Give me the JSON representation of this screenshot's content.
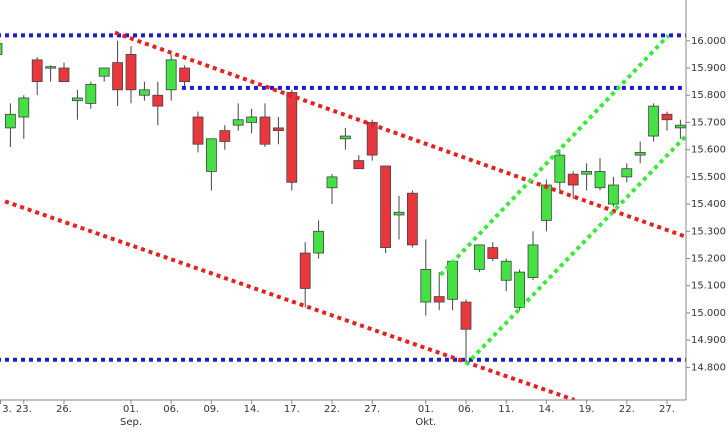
{
  "chart_data": {
    "type": "candlestick",
    "categories": [
      "3.",
      null,
      "23.",
      null,
      null,
      "26.",
      null,
      null,
      null,
      null,
      "01.",
      null,
      null,
      "06.",
      null,
      null,
      "09.",
      null,
      null,
      "14.",
      null,
      null,
      "17.",
      null,
      null,
      "22.",
      null,
      null,
      "27.",
      null,
      null,
      null,
      "01.",
      null,
      null,
      "06.",
      null,
      null,
      "11.",
      null,
      null,
      "14.",
      null,
      null,
      "19.",
      null,
      null,
      "22.",
      null,
      null,
      "27.",
      null,
      null
    ],
    "months": [
      null,
      null,
      null,
      null,
      null,
      null,
      null,
      null,
      null,
      null,
      "Sep.",
      null,
      null,
      null,
      null,
      null,
      null,
      null,
      null,
      null,
      null,
      null,
      null,
      null,
      null,
      null,
      null,
      null,
      null,
      null,
      null,
      null,
      "Okt.",
      null,
      null,
      null,
      null,
      null,
      null,
      null,
      null,
      null,
      null,
      null,
      null,
      null,
      null,
      null,
      null,
      null,
      null,
      null
    ],
    "open": [
      15.95,
      15.68,
      15.72,
      15.93,
      15.9,
      15.9,
      15.78,
      15.77,
      15.87,
      15.92,
      15.95,
      15.8,
      15.8,
      15.82,
      15.9,
      15.72,
      15.52,
      15.67,
      15.69,
      15.7,
      15.72,
      15.68,
      15.81,
      15.22,
      15.22,
      15.46,
      15.64,
      15.56,
      15.7,
      15.54,
      15.36,
      15.44,
      15.04,
      15.06,
      15.05,
      15.04,
      15.16,
      15.24,
      15.12,
      15.02,
      15.13,
      15.34,
      15.48,
      15.51,
      15.51,
      15.46,
      15.4,
      15.5,
      15.58,
      15.65,
      15.73,
      15.68
    ],
    "high": [
      15.99,
      15.77,
      15.8,
      15.94,
      15.91,
      15.92,
      15.82,
      15.85,
      15.9,
      16.0,
      15.98,
      15.85,
      15.85,
      15.95,
      15.91,
      15.74,
      15.64,
      15.69,
      15.77,
      15.75,
      15.77,
      15.72,
      15.82,
      15.26,
      15.34,
      15.51,
      15.68,
      15.58,
      15.71,
      15.54,
      15.43,
      15.45,
      15.27,
      15.15,
      15.19,
      15.05,
      15.25,
      15.26,
      15.2,
      15.16,
      15.3,
      15.49,
      15.6,
      15.52,
      15.55,
      15.57,
      15.5,
      15.55,
      15.63,
      15.77,
      15.74,
      15.71
    ],
    "low": [
      15.94,
      15.61,
      15.64,
      15.8,
      15.85,
      15.85,
      15.71,
      15.75,
      15.85,
      15.76,
      15.77,
      15.78,
      15.69,
      15.78,
      15.82,
      15.59,
      15.45,
      15.6,
      15.67,
      15.66,
      15.61,
      15.62,
      15.45,
      15.02,
      15.2,
      15.4,
      15.6,
      15.53,
      15.56,
      15.22,
      15.27,
      15.24,
      14.99,
      15.01,
      15.01,
      14.82,
      15.15,
      15.19,
      15.08,
      15.01,
      15.12,
      15.3,
      15.44,
      15.42,
      15.45,
      15.45,
      15.39,
      15.48,
      15.55,
      15.63,
      15.67,
      15.64
    ],
    "close": [
      15.99,
      15.73,
      15.79,
      15.85,
      15.905,
      15.85,
      15.79,
      15.84,
      15.9,
      15.82,
      15.82,
      15.82,
      15.76,
      15.93,
      15.85,
      15.62,
      15.64,
      15.63,
      15.71,
      15.72,
      15.62,
      15.67,
      15.48,
      15.09,
      15.3,
      15.5,
      15.65,
      15.53,
      15.58,
      15.24,
      15.37,
      15.25,
      15.16,
      15.04,
      15.19,
      14.94,
      15.25,
      15.2,
      15.19,
      15.15,
      15.25,
      15.47,
      15.58,
      15.47,
      15.52,
      15.52,
      15.47,
      15.53,
      15.59,
      15.76,
      15.71,
      15.69
    ],
    "up_color": "#44e044",
    "down_color": "#e8383d",
    "ylim": [
      14.68,
      16.15
    ],
    "yticks": [
      {
        "value": 14.8,
        "label": "14.800"
      },
      {
        "value": 14.9,
        "label": "14.900"
      },
      {
        "value": 15.0,
        "label": "15.000"
      },
      {
        "value": 15.1,
        "label": "15.100"
      },
      {
        "value": 15.2,
        "label": "15.200"
      },
      {
        "value": 15.3,
        "label": "15.300"
      },
      {
        "value": 15.4,
        "label": "15.400"
      },
      {
        "value": 15.5,
        "label": "15.500"
      },
      {
        "value": 15.6,
        "label": "15.600"
      },
      {
        "value": 15.7,
        "label": "15.700"
      },
      {
        "value": 15.8,
        "label": "15.800"
      },
      {
        "value": 15.9,
        "label": "15.900"
      },
      {
        "value": 16.0,
        "label": "16.000"
      }
    ],
    "lines": [
      {
        "color": "#1c1cc8",
        "x": [
          0,
          51.4
        ],
        "y": [
          16.02,
          16.02
        ]
      },
      {
        "color": "#1c1cc8",
        "x": [
          13.8,
          51.4
        ],
        "y": [
          15.827,
          15.827
        ]
      },
      {
        "color": "#1c1cc8",
        "x": [
          0,
          51.4
        ],
        "y": [
          14.828,
          14.828
        ]
      },
      {
        "color": "#e82020",
        "x": [
          8.8,
          51.4
        ],
        "y": [
          16.03,
          15.28
        ]
      },
      {
        "color": "#e82020",
        "x": [
          0.6,
          43.1
        ],
        "y": [
          15.41,
          14.68
        ]
      },
      {
        "color": "#33ee33",
        "x": [
          33.1,
          50.1
        ],
        "y": [
          15.14,
          16.02
        ]
      },
      {
        "color": "#33ee33",
        "x": [
          35,
          51.4
        ],
        "y": [
          14.81,
          15.65
        ]
      }
    ]
  }
}
